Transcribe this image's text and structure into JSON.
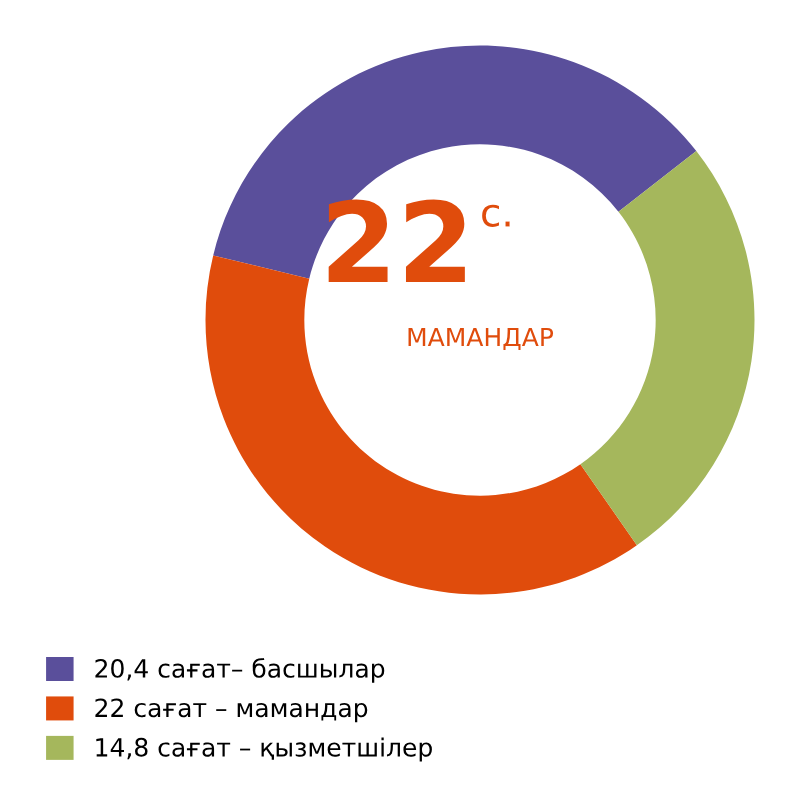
{
  "chart_data": {
    "type": "donut",
    "categories": [
      "20,4 сағат– басшылар",
      "22 сағат – мамандар",
      "14,8 сағат – қызметшілер"
    ],
    "values": [
      20.4,
      22,
      14.8
    ],
    "colors": [
      "#5a4f9b",
      "#e04c0c",
      "#a5b75c"
    ],
    "annotations": [
      "22",
      "с.",
      "МАМАНДАР"
    ],
    "legend": "bottom left"
  }
}
